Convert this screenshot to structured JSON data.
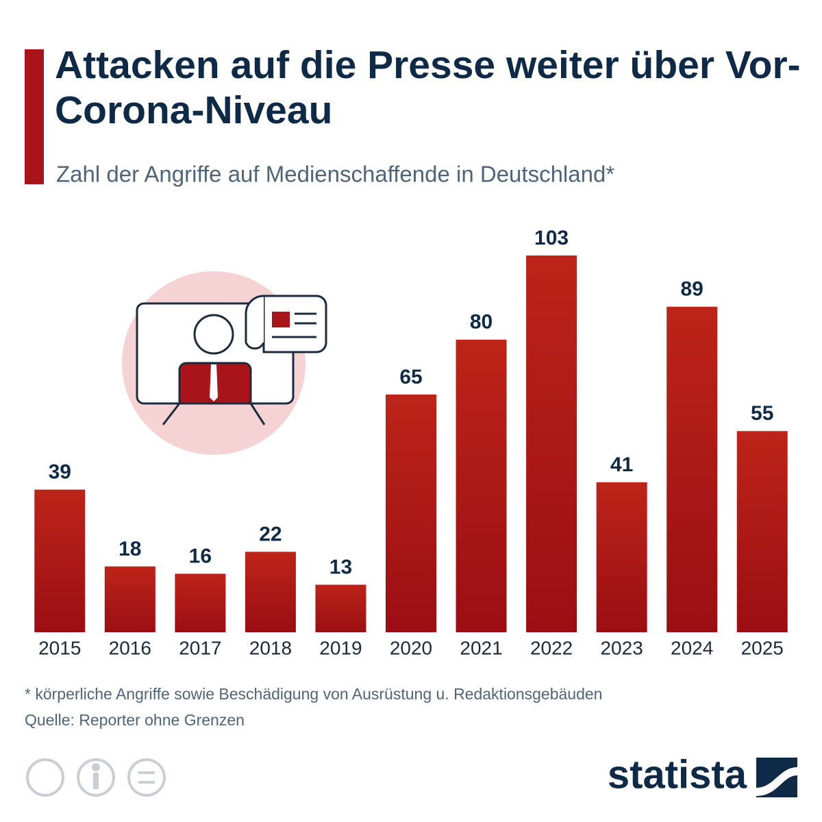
{
  "chart_data": {
    "type": "bar",
    "title": "Attacken auf die Presse weiter über Vor-Corona-Niveau",
    "subtitle": "Zahl der Angriffe auf Medienschaffende in Deutschland*",
    "categories": [
      "2015",
      "2016",
      "2017",
      "2018",
      "2019",
      "2020",
      "2021",
      "2022",
      "2023",
      "2024",
      "2025"
    ],
    "values": [
      39,
      18,
      16,
      22,
      13,
      65,
      80,
      103,
      41,
      89,
      55
    ],
    "color": "#b01a18",
    "footnote": "* körperliche Angriffe sowie Beschädigung von Ausrüstung u. Redaktionsgebäuden",
    "source": "Quelle: Reporter ohne Grenzen",
    "brand": "statista"
  }
}
